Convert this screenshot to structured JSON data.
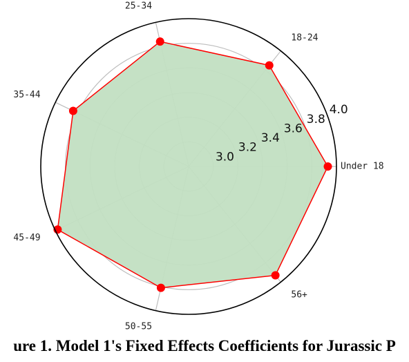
{
  "chart_data": {
    "type": "radar",
    "categories": [
      "Under 18",
      "18-24",
      "25-34",
      "35-44",
      "45-49",
      "50-55",
      "56+"
    ],
    "values": [
      3.93,
      3.85,
      3.84,
      3.84,
      3.98,
      3.81,
      3.93
    ],
    "radial_ticks": [
      "3.0",
      "3.2",
      "3.4",
      "3.6",
      "3.8",
      "4.0"
    ],
    "rlim": [
      2.8,
      4.0
    ],
    "colors": {
      "fill": "#c2dfc2",
      "line": "#ff0000",
      "marker": "#ff0000",
      "grid": "#bdbdbd",
      "frame": "#000000"
    }
  },
  "caption": "ure 1. Model 1's Fixed Effects Coefficients for Jurassic P"
}
